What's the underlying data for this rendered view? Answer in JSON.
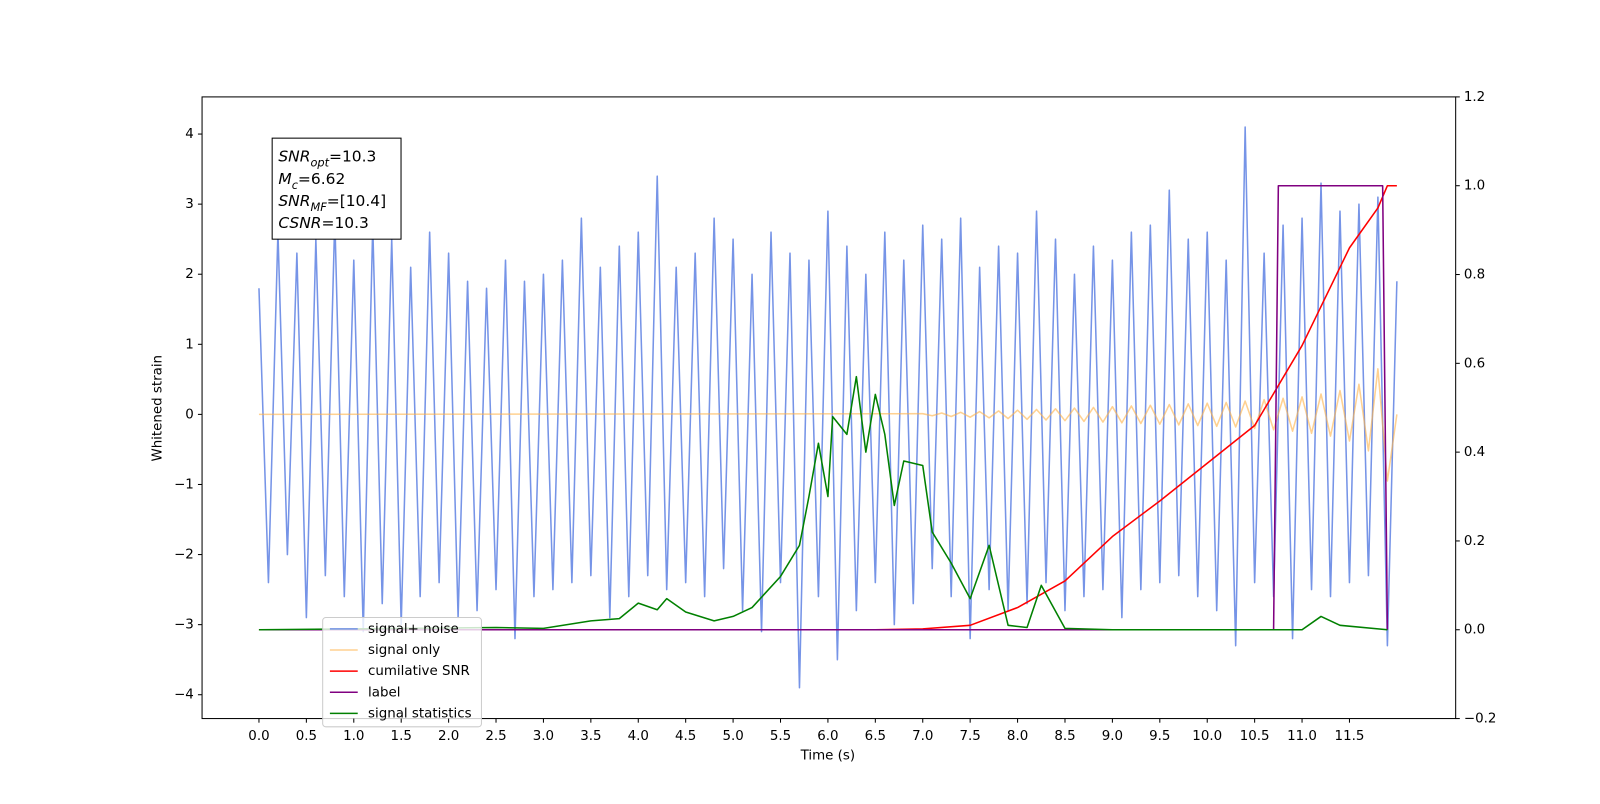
{
  "chart_data": {
    "type": "line",
    "xlabel": "Time (s)",
    "ylabel": "Whitened strain",
    "xlim": [
      -0.6,
      12.62
    ],
    "xticks": [
      {
        "value": 0,
        "label": "0.0"
      },
      0.5,
      {
        "value": 1,
        "label": "1.0"
      },
      1.5,
      {
        "value": 2,
        "label": "2.0"
      },
      2.5,
      {
        "value": 3,
        "label": "3.0"
      },
      3.5,
      {
        "value": 4,
        "label": "4.0"
      },
      4.5,
      {
        "value": 5,
        "label": "5.0"
      },
      5.5,
      {
        "value": 6,
        "label": "6.0"
      },
      6.5,
      {
        "value": 7,
        "label": "7.0"
      },
      7.5,
      {
        "value": 8,
        "label": "8.0"
      },
      8.5,
      {
        "value": 9,
        "label": "9.0"
      },
      9.5,
      {
        "value": 10,
        "label": "10.0"
      },
      10.5,
      {
        "value": 11,
        "label": "11.0"
      },
      11.5
    ],
    "ylim": [
      -4.34,
      4.53
    ],
    "yticks": [
      {
        "value": -4,
        "label": "−4"
      },
      {
        "value": -3,
        "label": "−3"
      },
      {
        "value": -2,
        "label": "−2"
      },
      {
        "value": -1,
        "label": "−1"
      },
      0,
      1,
      2,
      3,
      4
    ],
    "y2lim": [
      -0.2,
      1.2
    ],
    "y2ticks": [
      {
        "value": -0.2,
        "label": "−0.2"
      },
      {
        "value": 0,
        "label": "0.0"
      },
      0.2,
      0.4,
      0.6,
      0.8,
      {
        "value": 1,
        "label": "1.0"
      },
      1.2
    ],
    "legend_position": "lower left",
    "annotation_lines": [
      {
        "main": "SNR",
        "sub": "opt",
        "rest": "=10.3"
      },
      {
        "main": "M",
        "sub": "c",
        "rest": "=6.62"
      },
      {
        "main": "SNR",
        "sub": "MF",
        "rest": "=[10.4]"
      },
      {
        "main": "CSNR",
        "rest": "=10.3"
      }
    ],
    "series": [
      {
        "name": "signal+ noise",
        "color": "#6f8ee6",
        "x": [
          0.0,
          0.1,
          0.2,
          0.3,
          0.4,
          0.5,
          0.6,
          0.7,
          0.8,
          0.9,
          1.0,
          1.1,
          1.2,
          1.3,
          1.4,
          1.5,
          1.6,
          1.7,
          1.8,
          1.9,
          2.0,
          2.1,
          2.2,
          2.3,
          2.4,
          2.5,
          2.6,
          2.7,
          2.8,
          2.9,
          3.0,
          3.1,
          3.2,
          3.3,
          3.4,
          3.5,
          3.6,
          3.7,
          3.8,
          3.9,
          4.0,
          4.1,
          4.2,
          4.3,
          4.4,
          4.5,
          4.6,
          4.7,
          4.8,
          4.9,
          5.0,
          5.1,
          5.2,
          5.3,
          5.4,
          5.5,
          5.6,
          5.7,
          5.8,
          5.9,
          6.0,
          6.1,
          6.2,
          6.3,
          6.4,
          6.5,
          6.6,
          6.7,
          6.8,
          6.9,
          7.0,
          7.1,
          7.2,
          7.3,
          7.4,
          7.5,
          7.6,
          7.7,
          7.8,
          7.9,
          8.0,
          8.1,
          8.2,
          8.3,
          8.4,
          8.5,
          8.6,
          8.7,
          8.8,
          8.9,
          9.0,
          9.1,
          9.2,
          9.3,
          9.4,
          9.5,
          9.6,
          9.7,
          9.8,
          9.9,
          10.0,
          10.1,
          10.2,
          10.3,
          10.4,
          10.5,
          10.6,
          10.7,
          10.8,
          10.9,
          11.0,
          11.1,
          11.2,
          11.3,
          11.4,
          11.5,
          11.6,
          11.7,
          11.8,
          11.9,
          12.0
        ],
        "values": [
          1.8,
          -2.4,
          2.6,
          -2.0,
          2.3,
          -2.9,
          2.5,
          -2.3,
          2.8,
          -2.6,
          2.2,
          -3.1,
          2.7,
          -2.7,
          2.5,
          -3.0,
          2.1,
          -2.6,
          2.6,
          -2.4,
          2.3,
          -2.9,
          1.9,
          -2.8,
          1.8,
          -2.5,
          2.2,
          -3.2,
          1.9,
          -2.6,
          2.0,
          -2.5,
          2.2,
          -2.4,
          2.8,
          -2.3,
          2.1,
          -2.9,
          2.4,
          -2.6,
          2.6,
          -2.3,
          3.4,
          -2.5,
          2.1,
          -2.4,
          2.3,
          -2.6,
          2.8,
          -2.2,
          2.5,
          -2.8,
          2.0,
          -3.1,
          2.6,
          -2.4,
          2.3,
          -3.9,
          2.2,
          -2.6,
          2.9,
          -3.5,
          2.4,
          -2.8,
          2.0,
          -2.4,
          2.6,
          -3.0,
          2.2,
          -2.7,
          2.7,
          -2.2,
          2.5,
          -2.6,
          2.8,
          -3.2,
          2.1,
          -2.5,
          2.4,
          -2.8,
          2.3,
          -2.7,
          2.9,
          -2.4,
          2.5,
          -2.8,
          2.0,
          -2.6,
          2.4,
          -2.5,
          2.2,
          -2.9,
          2.6,
          -2.5,
          2.7,
          -2.4,
          3.2,
          -2.3,
          2.5,
          -2.6,
          2.6,
          -2.8,
          2.2,
          -3.3,
          4.1,
          -2.4,
          2.3,
          -2.6,
          2.7,
          -3.2,
          2.8,
          -2.5,
          3.3,
          -2.6,
          2.9,
          -2.4,
          3.0,
          -2.3,
          3.1,
          -3.3,
          1.9
        ]
      },
      {
        "name": "signal only",
        "color": "#ffb347",
        "x": [
          0.0,
          7.0,
          7.1,
          7.2,
          7.3,
          7.4,
          7.5,
          7.6,
          7.7,
          7.8,
          7.9,
          8.0,
          8.1,
          8.2,
          8.3,
          8.4,
          8.5,
          8.6,
          8.7,
          8.8,
          8.9,
          9.0,
          9.1,
          9.2,
          9.3,
          9.4,
          9.5,
          9.6,
          9.7,
          9.8,
          9.9,
          10.0,
          10.1,
          10.2,
          10.3,
          10.4,
          10.5,
          10.6,
          10.7,
          10.8,
          10.9,
          11.0,
          11.1,
          11.2,
          11.3,
          11.4,
          11.5,
          11.6,
          11.7,
          11.8,
          11.9,
          12.0
        ],
        "values": [
          0.0,
          0.01,
          -0.02,
          0.02,
          -0.03,
          0.03,
          -0.04,
          0.04,
          -0.05,
          0.05,
          -0.06,
          0.06,
          -0.07,
          0.07,
          -0.08,
          0.08,
          -0.09,
          0.09,
          -0.1,
          0.1,
          -0.11,
          0.11,
          -0.12,
          0.12,
          -0.13,
          0.13,
          -0.14,
          0.14,
          -0.15,
          0.15,
          -0.16,
          0.16,
          -0.17,
          0.17,
          -0.18,
          0.19,
          -0.2,
          0.21,
          -0.22,
          0.23,
          -0.24,
          0.25,
          -0.27,
          0.29,
          -0.31,
          0.34,
          -0.38,
          0.43,
          -0.52,
          0.65,
          -0.95,
          0.0
        ]
      },
      {
        "name": "cumilative SNR",
        "color": "#ff0000",
        "axis": "y2",
        "x": [
          0.0,
          6.5,
          7.0,
          7.5,
          8.0,
          8.5,
          9.0,
          9.5,
          10.0,
          10.5,
          11.0,
          11.5,
          11.8,
          11.9,
          12.0
        ],
        "values": [
          0.0,
          0.0,
          0.002,
          0.01,
          0.05,
          0.11,
          0.21,
          0.29,
          0.375,
          0.46,
          0.64,
          0.86,
          0.95,
          1.0,
          1.0
        ]
      },
      {
        "name": "label",
        "color": "#800080",
        "axis": "y2",
        "x": [
          0.0,
          10.7,
          10.75,
          11.85,
          11.9
        ],
        "values": [
          0.0,
          0.0,
          1.0,
          1.0,
          0.0
        ]
      },
      {
        "name": "signal statistics",
        "color": "#008000",
        "axis": "y2",
        "x": [
          0.0,
          2.5,
          3.0,
          3.5,
          3.8,
          4.0,
          4.2,
          4.3,
          4.5,
          4.8,
          5.0,
          5.2,
          5.5,
          5.7,
          5.8,
          5.9,
          6.0,
          6.05,
          6.2,
          6.3,
          6.4,
          6.5,
          6.6,
          6.7,
          6.8,
          7.0,
          7.1,
          7.3,
          7.5,
          7.7,
          7.9,
          8.1,
          8.25,
          8.5,
          9.0,
          11.0,
          11.2,
          11.4,
          11.9
        ],
        "values": [
          0.0,
          0.005,
          0.003,
          0.02,
          0.025,
          0.06,
          0.045,
          0.07,
          0.04,
          0.02,
          0.03,
          0.05,
          0.12,
          0.19,
          0.3,
          0.42,
          0.3,
          0.48,
          0.44,
          0.57,
          0.4,
          0.53,
          0.44,
          0.28,
          0.38,
          0.37,
          0.22,
          0.15,
          0.07,
          0.19,
          0.01,
          0.005,
          0.1,
          0.003,
          0.0,
          0.0,
          0.03,
          0.01,
          0.0
        ]
      }
    ]
  }
}
